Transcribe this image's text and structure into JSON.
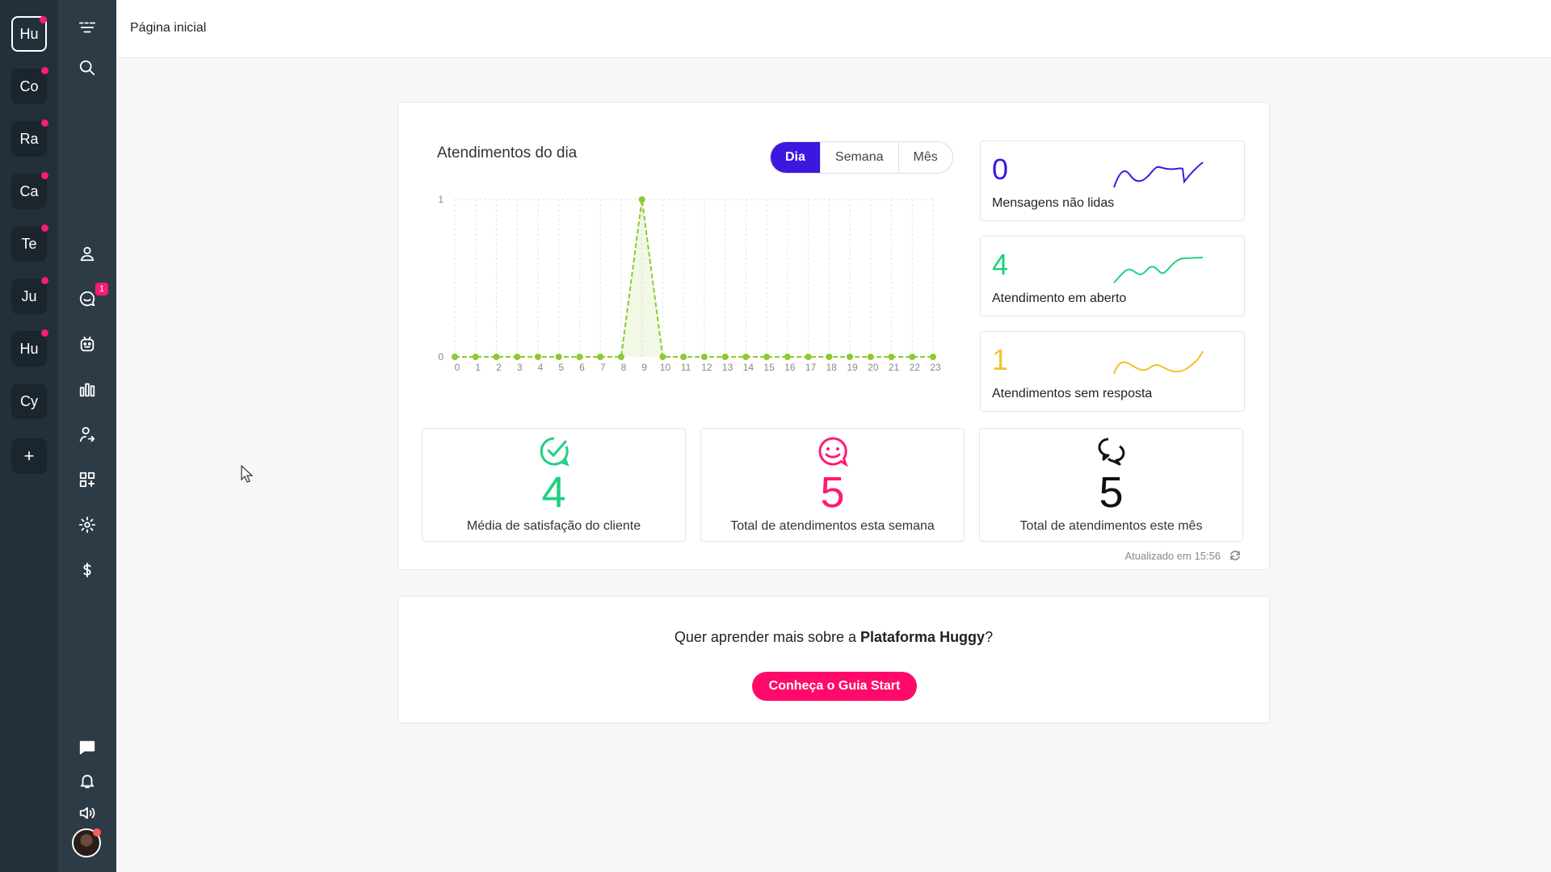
{
  "workspaces": [
    {
      "label": "Hu",
      "dot": true,
      "active": true
    },
    {
      "label": "Co",
      "dot": true
    },
    {
      "label": "Ra",
      "dot": true
    },
    {
      "label": "Ca",
      "dot": true
    },
    {
      "label": "Te",
      "dot": true
    },
    {
      "label": "Ju",
      "dot": true
    },
    {
      "label": "Hu",
      "dot": true
    },
    {
      "label": "Cy",
      "dot": false
    },
    {
      "label": "+"
    }
  ],
  "nav": {
    "icons": [
      "menu-icon",
      "search-icon",
      "contacts-icon",
      "chats-icon",
      "bot-icon",
      "reports-icon",
      "agents-icon",
      "apps-icon",
      "settings-icon",
      "billing-icon",
      "messages-icon",
      "bell-icon",
      "sound-icon"
    ],
    "chats_badge": "1"
  },
  "header": {
    "title": "Página inicial"
  },
  "chart_section": {
    "title": "Atendimentos do dia",
    "tabs": [
      "Dia",
      "Semana",
      "Mês"
    ],
    "active_tab": "Dia"
  },
  "chart_data": {
    "type": "line",
    "x": [
      0,
      1,
      2,
      3,
      4,
      5,
      6,
      7,
      8,
      9,
      10,
      11,
      12,
      13,
      14,
      15,
      16,
      17,
      18,
      19,
      20,
      21,
      22,
      23
    ],
    "values": [
      0,
      0,
      0,
      0,
      0,
      0,
      0,
      0,
      0,
      1,
      0,
      0,
      0,
      0,
      0,
      0,
      0,
      0,
      0,
      0,
      0,
      0,
      0,
      0
    ],
    "ylim": [
      0,
      1
    ],
    "y_ticks": [
      "0",
      "1"
    ],
    "grid": true,
    "color": "#8acb2f"
  },
  "kpis": [
    {
      "value": "0",
      "label": "Mensagens não lidas",
      "color": "#3d17e0"
    },
    {
      "value": "4",
      "label": "Atendimento em aberto",
      "color": "#1fd17f"
    },
    {
      "value": "1",
      "label": "Atendimentos sem resposta",
      "color": "#f2c22a"
    }
  ],
  "stats": [
    {
      "value": "4",
      "label": "Média de satisfação do cliente",
      "color": "#1fd17f",
      "icon": "check-badge-icon"
    },
    {
      "value": "5",
      "label": "Total de atendimentos esta semana",
      "color": "#ff1a75",
      "icon": "smile-chat-icon"
    },
    {
      "value": "5",
      "label": "Total de atendimentos este mês",
      "color": "#111111",
      "icon": "conversation-icon"
    }
  ],
  "updated": "Atualizado em 15:56",
  "learn": {
    "text_before": "Quer aprender mais sobre a ",
    "brand": "Plataforma Huggy",
    "text_after": "?",
    "cta": "Conheça o Guia Start"
  }
}
